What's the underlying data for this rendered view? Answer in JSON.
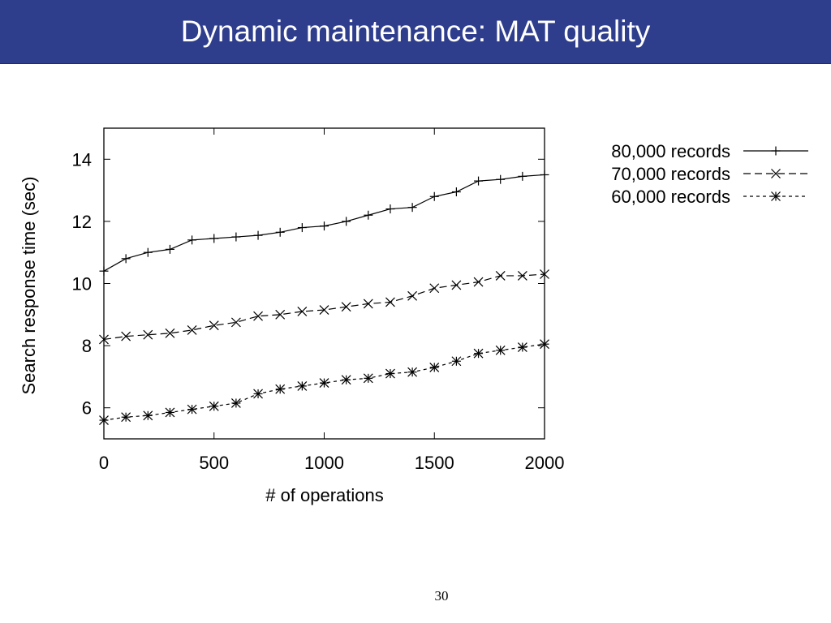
{
  "slide": {
    "title": "Dynamic maintenance: MAT quality",
    "page_number": "30"
  },
  "colors": {
    "title_bar": "#2e3d8c",
    "title_text": "#ffffff",
    "series_line": "#000000"
  },
  "chart_data": {
    "type": "line",
    "title": "",
    "xlabel": "# of operations",
    "ylabel": "Search response time (sec)",
    "xlim": [
      0,
      2000
    ],
    "ylim": [
      5,
      15
    ],
    "xticks": [
      0,
      500,
      1000,
      1500,
      2000
    ],
    "yticks": [
      6,
      8,
      10,
      12,
      14
    ],
    "x": [
      0,
      100,
      200,
      300,
      400,
      500,
      600,
      700,
      800,
      900,
      1000,
      1100,
      1200,
      1300,
      1400,
      1500,
      1600,
      1700,
      1800,
      1900,
      2000
    ],
    "grid": false,
    "legend_position": "outside-top-right",
    "series": [
      {
        "name": "80,000 records",
        "marker": "plus",
        "dash": "solid",
        "values": [
          10.4,
          10.8,
          11.0,
          11.1,
          11.4,
          11.45,
          11.5,
          11.55,
          11.65,
          11.8,
          11.85,
          12.0,
          12.2,
          12.4,
          12.45,
          12.8,
          12.95,
          13.3,
          13.35,
          13.45,
          13.5
        ]
      },
      {
        "name": "70,000 records",
        "marker": "x",
        "dash": "dashed",
        "values": [
          8.2,
          8.3,
          8.35,
          8.4,
          8.5,
          8.65,
          8.75,
          8.95,
          9.0,
          9.1,
          9.15,
          9.25,
          9.35,
          9.4,
          9.6,
          9.85,
          9.95,
          10.05,
          10.25,
          10.25,
          10.3
        ]
      },
      {
        "name": "60,000 records",
        "marker": "star",
        "dash": "dotted",
        "values": [
          5.6,
          5.7,
          5.75,
          5.85,
          5.95,
          6.05,
          6.15,
          6.45,
          6.6,
          6.7,
          6.8,
          6.9,
          6.95,
          7.1,
          7.15,
          7.3,
          7.5,
          7.75,
          7.85,
          7.95,
          8.05
        ]
      }
    ]
  }
}
